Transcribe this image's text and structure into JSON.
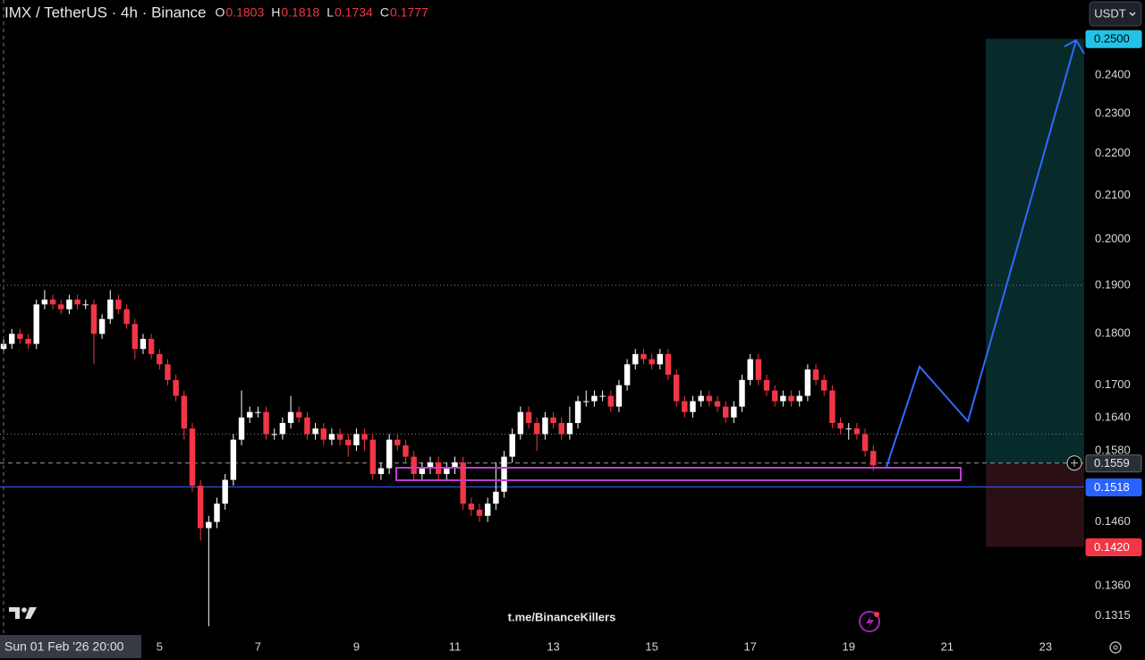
{
  "chart_data": {
    "type": "candlestick",
    "title": "IMX / TetherUS · 4h · Binance",
    "ohlc_legend": [
      {
        "label": "O",
        "value": "0.1803"
      },
      {
        "label": "H",
        "value": "0.1818"
      },
      {
        "label": "L",
        "value": "0.1734"
      },
      {
        "label": "C",
        "value": "0.1777"
      }
    ],
    "currency_button": "USDT",
    "watermark": "t.me/BinanceKillers",
    "crosshair_label": "Sun 01 Feb '26 20:00",
    "log_scale": true,
    "up_color": "#ffffff",
    "down_color": "#f23645",
    "xlim": [
      -0.44,
      131.7
    ],
    "xticks": [
      {
        "value": 19,
        "label": "5"
      },
      {
        "value": 31,
        "label": "7"
      },
      {
        "value": 43,
        "label": "9"
      },
      {
        "value": 55,
        "label": "11"
      },
      {
        "value": 67,
        "label": "13"
      },
      {
        "value": 79,
        "label": "15"
      },
      {
        "value": 91,
        "label": "17"
      },
      {
        "value": 103,
        "label": "19"
      },
      {
        "value": 115,
        "label": "21"
      },
      {
        "value": 127,
        "label": "23"
      }
    ],
    "ylim": [
      0.129,
      0.261
    ],
    "yticks": [
      {
        "value": 0.24,
        "label": "0.2400"
      },
      {
        "value": 0.23,
        "label": "0.2300"
      },
      {
        "value": 0.22,
        "label": "0.2200"
      },
      {
        "value": 0.21,
        "label": "0.2100"
      },
      {
        "value": 0.2,
        "label": "0.2000"
      },
      {
        "value": 0.19,
        "label": "0.1900"
      },
      {
        "value": 0.18,
        "label": "0.1800"
      },
      {
        "value": 0.17,
        "label": "0.1700"
      },
      {
        "value": 0.164,
        "label": "0.1640"
      },
      {
        "value": 0.158,
        "label": "0.1580"
      },
      {
        "value": 0.146,
        "label": "0.1460"
      },
      {
        "value": 0.136,
        "label": "0.1360"
      },
      {
        "value": 0.1315,
        "label": "0.1315"
      }
    ],
    "horizontal_lines": [
      0.19,
      0.161
    ],
    "position": {
      "target": {
        "value": 0.25,
        "label": "0.2500",
        "color": "#22c3e6"
      },
      "entry": {
        "value": 0.1559,
        "label": "0.1559",
        "color": "#2a2e39"
      },
      "stop": {
        "value": 0.142,
        "label": "0.1420",
        "color": "#f23645"
      }
    },
    "support_line": {
      "value": 0.1518,
      "label": "0.1518",
      "color": "#2962ff"
    },
    "candles": {
      "open": [
        0.177,
        0.178,
        0.18,
        0.179,
        0.178,
        0.186,
        0.187,
        0.186,
        0.185,
        0.187,
        0.186,
        0.186,
        0.18,
        0.183,
        0.187,
        0.185,
        0.182,
        0.177,
        0.179,
        0.176,
        0.174,
        0.171,
        0.168,
        0.162,
        0.152,
        0.145,
        0.146,
        0.149,
        0.153,
        0.16,
        0.164,
        0.165,
        0.165,
        0.161,
        0.161,
        0.163,
        0.165,
        0.164,
        0.161,
        0.162,
        0.16,
        0.161,
        0.16,
        0.159,
        0.161,
        0.16,
        0.154,
        0.155,
        0.16,
        0.159,
        0.157,
        0.154,
        0.155,
        0.156,
        0.154,
        0.155,
        0.156,
        0.149,
        0.148,
        0.147,
        0.149,
        0.151,
        0.157,
        0.161,
        0.165,
        0.163,
        0.161,
        0.164,
        0.163,
        0.161,
        0.163,
        0.167,
        0.167,
        0.168,
        0.168,
        0.166,
        0.17,
        0.174,
        0.176,
        0.175,
        0.174,
        0.176,
        0.172,
        0.167,
        0.165,
        0.167,
        0.168,
        0.167,
        0.166,
        0.164,
        0.166,
        0.171,
        0.175,
        0.171,
        0.169,
        0.167,
        0.168,
        0.167,
        0.168,
        0.173,
        0.171,
        0.169,
        0.163,
        0.162,
        0.162,
        0.161,
        0.158
      ],
      "high": [
        0.179,
        0.181,
        0.181,
        0.18,
        0.187,
        0.189,
        0.188,
        0.187,
        0.188,
        0.188,
        0.187,
        0.187,
        0.184,
        0.189,
        0.188,
        0.186,
        0.183,
        0.18,
        0.18,
        0.177,
        0.175,
        0.172,
        0.169,
        0.163,
        0.153,
        0.147,
        0.15,
        0.154,
        0.161,
        0.169,
        0.166,
        0.166,
        0.166,
        0.162,
        0.164,
        0.168,
        0.166,
        0.165,
        0.163,
        0.163,
        0.162,
        0.162,
        0.161,
        0.162,
        0.162,
        0.161,
        0.156,
        0.161,
        0.161,
        0.16,
        0.158,
        0.156,
        0.157,
        0.157,
        0.156,
        0.157,
        0.157,
        0.15,
        0.149,
        0.15,
        0.156,
        0.158,
        0.162,
        0.166,
        0.166,
        0.164,
        0.165,
        0.165,
        0.164,
        0.166,
        0.168,
        0.169,
        0.169,
        0.169,
        0.169,
        0.171,
        0.175,
        0.177,
        0.177,
        0.176,
        0.177,
        0.177,
        0.173,
        0.168,
        0.168,
        0.169,
        0.169,
        0.168,
        0.167,
        0.167,
        0.172,
        0.176,
        0.176,
        0.172,
        0.17,
        0.169,
        0.169,
        0.169,
        0.174,
        0.174,
        0.172,
        0.17,
        0.164,
        0.163,
        0.163,
        0.162,
        0.159
      ],
      "low": [
        0.176,
        0.177,
        0.178,
        0.177,
        0.177,
        0.185,
        0.185,
        0.184,
        0.184,
        0.185,
        0.185,
        0.174,
        0.179,
        0.182,
        0.184,
        0.181,
        0.175,
        0.176,
        0.175,
        0.173,
        0.17,
        0.167,
        0.16,
        0.151,
        0.143,
        0.13,
        0.145,
        0.148,
        0.152,
        0.159,
        0.163,
        0.164,
        0.16,
        0.16,
        0.16,
        0.162,
        0.163,
        0.16,
        0.16,
        0.159,
        0.159,
        0.159,
        0.157,
        0.158,
        0.158,
        0.153,
        0.153,
        0.154,
        0.158,
        0.156,
        0.153,
        0.153,
        0.154,
        0.153,
        0.153,
        0.154,
        0.148,
        0.147,
        0.146,
        0.146,
        0.148,
        0.15,
        0.156,
        0.16,
        0.162,
        0.158,
        0.16,
        0.162,
        0.16,
        0.16,
        0.162,
        0.166,
        0.166,
        0.167,
        0.165,
        0.165,
        0.169,
        0.173,
        0.174,
        0.173,
        0.173,
        0.171,
        0.166,
        0.164,
        0.164,
        0.166,
        0.166,
        0.165,
        0.163,
        0.163,
        0.165,
        0.17,
        0.17,
        0.168,
        0.166,
        0.166,
        0.166,
        0.166,
        0.167,
        0.17,
        0.168,
        0.162,
        0.161,
        0.16,
        0.16,
        0.157,
        0.1545
      ],
      "close": [
        0.178,
        0.18,
        0.179,
        0.178,
        0.186,
        0.187,
        0.186,
        0.185,
        0.187,
        0.186,
        0.186,
        0.18,
        0.183,
        0.187,
        0.185,
        0.182,
        0.177,
        0.179,
        0.176,
        0.174,
        0.171,
        0.168,
        0.162,
        0.152,
        0.145,
        0.146,
        0.149,
        0.153,
        0.16,
        0.164,
        0.165,
        0.165,
        0.161,
        0.161,
        0.163,
        0.165,
        0.164,
        0.161,
        0.162,
        0.16,
        0.161,
        0.16,
        0.159,
        0.161,
        0.16,
        0.154,
        0.155,
        0.16,
        0.159,
        0.157,
        0.154,
        0.155,
        0.156,
        0.154,
        0.155,
        0.156,
        0.149,
        0.148,
        0.147,
        0.149,
        0.151,
        0.157,
        0.161,
        0.165,
        0.163,
        0.161,
        0.164,
        0.163,
        0.161,
        0.163,
        0.167,
        0.167,
        0.168,
        0.168,
        0.166,
        0.17,
        0.174,
        0.176,
        0.175,
        0.174,
        0.176,
        0.172,
        0.167,
        0.165,
        0.167,
        0.168,
        0.167,
        0.166,
        0.164,
        0.166,
        0.171,
        0.175,
        0.171,
        0.169,
        0.167,
        0.168,
        0.167,
        0.168,
        0.173,
        0.171,
        0.169,
        0.163,
        0.162,
        0.162,
        0.161,
        0.158,
        0.1555
      ]
    }
  }
}
